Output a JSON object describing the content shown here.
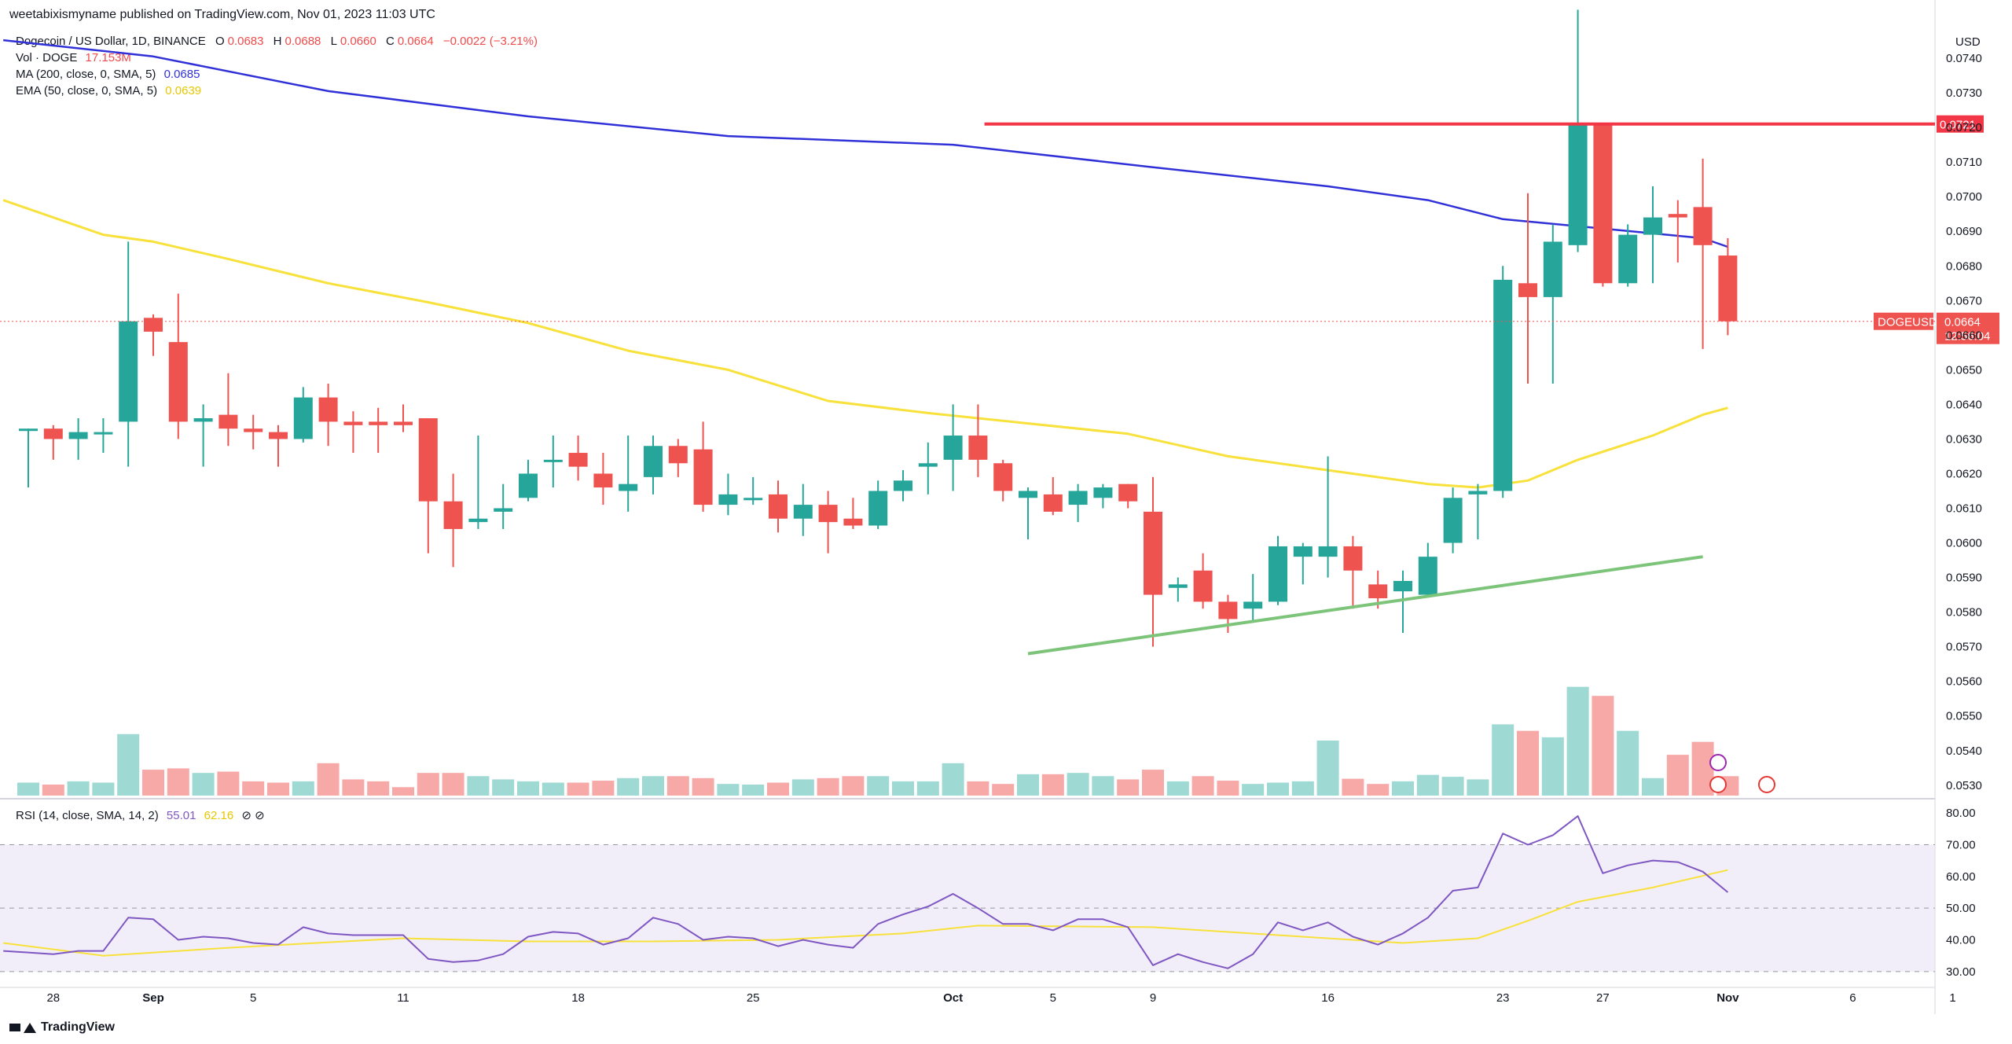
{
  "header": {
    "published": "weetabixismyname published on TradingView.com, Nov 01, 2023 11:03 UTC"
  },
  "legend": {
    "symbol": "Dogecoin / US Dollar, 1D, BINANCE",
    "ohlc": [
      {
        "k": "O",
        "v": "0.0683"
      },
      {
        "k": "H",
        "v": "0.0688"
      },
      {
        "k": "L",
        "v": "0.0660"
      },
      {
        "k": "C",
        "v": "0.0664"
      },
      {
        "k": "",
        "v": "−0.0022 (−3.21%)"
      }
    ],
    "vol": {
      "label": "Vol · DOGE",
      "value": "17.153M"
    },
    "ma": {
      "label": "MA (200, close, 0, SMA, 5)",
      "value": "0.0685"
    },
    "ema": {
      "label": "EMA (50, close, 0, SMA, 5)",
      "value": "0.0639"
    },
    "rsi": {
      "label": "RSI (14, close, SMA, 14, 2)",
      "value": "55.01",
      "value2": "62.16",
      "icons": "⊘ ⊘"
    }
  },
  "footer": {
    "brand": "TradingView"
  },
  "colors": {
    "up": "#26a69a",
    "down": "#ef5350",
    "ma": "#3030d8",
    "ema": "#f7e13a",
    "resistance": "#f23645",
    "support": "#7dc47b",
    "rsi": "#7e57c2",
    "rsi_ma": "#f7e13a"
  },
  "chart_data": [
    {
      "type": "candlestick",
      "title": "Dogecoin / US Dollar, 1D, BINANCE",
      "currency": "USD",
      "ylim": [
        0.0527,
        0.075
      ],
      "y_ticks": [
        "0.0530",
        "0.0540",
        "0.0550",
        "0.0560",
        "0.0570",
        "0.0580",
        "0.0590",
        "0.0600",
        "0.0610",
        "0.0620",
        "0.0630",
        "0.0640",
        "0.0650",
        "0.0660",
        "0.0670",
        "0.0680",
        "0.0690",
        "0.0700",
        "0.0710",
        "0.0720",
        "0.0730",
        "0.0740"
      ],
      "x_ticks": [
        {
          "day": 1,
          "label": "28"
        },
        {
          "day": 5,
          "label": "Sep"
        },
        {
          "day": 9,
          "label": "5"
        },
        {
          "day": 15,
          "label": "11"
        },
        {
          "day": 22,
          "label": "18"
        },
        {
          "day": 29,
          "label": "25"
        },
        {
          "day": 37,
          "label": "Oct"
        },
        {
          "day": 41,
          "label": "5"
        },
        {
          "day": 45,
          "label": "9"
        },
        {
          "day": 52,
          "label": "16"
        },
        {
          "day": 59,
          "label": "23"
        },
        {
          "day": 63,
          "label": "27"
        },
        {
          "day": 68,
          "label": "Nov"
        },
        {
          "day": 73,
          "label": "6"
        },
        {
          "day": 77,
          "label": "1"
        }
      ],
      "candles": [
        {
          "o": 0.0633,
          "h": 0.0633,
          "l": 0.0616,
          "c": 0.0633
        },
        {
          "o": 0.0633,
          "h": 0.0634,
          "l": 0.0624,
          "c": 0.063
        },
        {
          "o": 0.063,
          "h": 0.0636,
          "l": 0.0624,
          "c": 0.0632
        },
        {
          "o": 0.0632,
          "h": 0.0636,
          "l": 0.0626,
          "c": 0.0632
        },
        {
          "o": 0.0635,
          "h": 0.0687,
          "l": 0.0622,
          "c": 0.0664
        },
        {
          "o": 0.0665,
          "h": 0.0666,
          "l": 0.0654,
          "c": 0.0661
        },
        {
          "o": 0.0658,
          "h": 0.0672,
          "l": 0.063,
          "c": 0.0635
        },
        {
          "o": 0.0635,
          "h": 0.064,
          "l": 0.0622,
          "c": 0.0636
        },
        {
          "o": 0.0637,
          "h": 0.0649,
          "l": 0.0628,
          "c": 0.0633
        },
        {
          "o": 0.0633,
          "h": 0.0637,
          "l": 0.0627,
          "c": 0.0632
        },
        {
          "o": 0.0632,
          "h": 0.0634,
          "l": 0.0622,
          "c": 0.063
        },
        {
          "o": 0.063,
          "h": 0.0645,
          "l": 0.0629,
          "c": 0.0642
        },
        {
          "o": 0.0642,
          "h": 0.0646,
          "l": 0.0628,
          "c": 0.0635
        },
        {
          "o": 0.0635,
          "h": 0.0638,
          "l": 0.0626,
          "c": 0.0634
        },
        {
          "o": 0.0635,
          "h": 0.0639,
          "l": 0.0626,
          "c": 0.0634
        },
        {
          "o": 0.0635,
          "h": 0.064,
          "l": 0.0632,
          "c": 0.0634
        },
        {
          "o": 0.0636,
          "h": 0.0636,
          "l": 0.0597,
          "c": 0.0612
        },
        {
          "o": 0.0612,
          "h": 0.062,
          "l": 0.0593,
          "c": 0.0604
        },
        {
          "o": 0.0606,
          "h": 0.0631,
          "l": 0.0604,
          "c": 0.0607
        },
        {
          "o": 0.0609,
          "h": 0.0617,
          "l": 0.0604,
          "c": 0.061
        },
        {
          "o": 0.0613,
          "h": 0.0624,
          "l": 0.0612,
          "c": 0.062
        },
        {
          "o": 0.0624,
          "h": 0.0631,
          "l": 0.0616,
          "c": 0.0624
        },
        {
          "o": 0.0626,
          "h": 0.0631,
          "l": 0.0618,
          "c": 0.0622
        },
        {
          "o": 0.062,
          "h": 0.0626,
          "l": 0.0611,
          "c": 0.0616
        },
        {
          "o": 0.0615,
          "h": 0.0631,
          "l": 0.0609,
          "c": 0.0617
        },
        {
          "o": 0.0619,
          "h": 0.0631,
          "l": 0.0614,
          "c": 0.0628
        },
        {
          "o": 0.0628,
          "h": 0.063,
          "l": 0.0619,
          "c": 0.0623
        },
        {
          "o": 0.0627,
          "h": 0.0635,
          "l": 0.0609,
          "c": 0.0611
        },
        {
          "o": 0.0611,
          "h": 0.062,
          "l": 0.0608,
          "c": 0.0614
        },
        {
          "o": 0.0613,
          "h": 0.0619,
          "l": 0.0611,
          "c": 0.0613
        },
        {
          "o": 0.0614,
          "h": 0.0618,
          "l": 0.0603,
          "c": 0.0607
        },
        {
          "o": 0.0607,
          "h": 0.0617,
          "l": 0.0602,
          "c": 0.0611
        },
        {
          "o": 0.0611,
          "h": 0.0615,
          "l": 0.0597,
          "c": 0.0606
        },
        {
          "o": 0.0607,
          "h": 0.0613,
          "l": 0.0604,
          "c": 0.0605
        },
        {
          "o": 0.0605,
          "h": 0.0618,
          "l": 0.0604,
          "c": 0.0615
        },
        {
          "o": 0.0615,
          "h": 0.0621,
          "l": 0.0612,
          "c": 0.0618
        },
        {
          "o": 0.0622,
          "h": 0.0629,
          "l": 0.0614,
          "c": 0.0623
        },
        {
          "o": 0.0624,
          "h": 0.064,
          "l": 0.0615,
          "c": 0.0631
        },
        {
          "o": 0.0631,
          "h": 0.064,
          "l": 0.0619,
          "c": 0.0624
        },
        {
          "o": 0.0623,
          "h": 0.0624,
          "l": 0.0612,
          "c": 0.0615
        },
        {
          "o": 0.0613,
          "h": 0.0616,
          "l": 0.0601,
          "c": 0.0615
        },
        {
          "o": 0.0614,
          "h": 0.0619,
          "l": 0.0608,
          "c": 0.0609
        },
        {
          "o": 0.0611,
          "h": 0.0617,
          "l": 0.0606,
          "c": 0.0615
        },
        {
          "o": 0.0613,
          "h": 0.0617,
          "l": 0.061,
          "c": 0.0616
        },
        {
          "o": 0.0617,
          "h": 0.0617,
          "l": 0.061,
          "c": 0.0612
        },
        {
          "o": 0.0609,
          "h": 0.0619,
          "l": 0.057,
          "c": 0.0585
        },
        {
          "o": 0.0587,
          "h": 0.059,
          "l": 0.0583,
          "c": 0.0588
        },
        {
          "o": 0.0592,
          "h": 0.0597,
          "l": 0.0581,
          "c": 0.0583
        },
        {
          "o": 0.0583,
          "h": 0.0585,
          "l": 0.0574,
          "c": 0.0578
        },
        {
          "o": 0.0581,
          "h": 0.0591,
          "l": 0.0577,
          "c": 0.0583
        },
        {
          "o": 0.0583,
          "h": 0.0602,
          "l": 0.0582,
          "c": 0.0599
        },
        {
          "o": 0.0596,
          "h": 0.06,
          "l": 0.0588,
          "c": 0.0599
        },
        {
          "o": 0.0596,
          "h": 0.0625,
          "l": 0.059,
          "c": 0.0599
        },
        {
          "o": 0.0599,
          "h": 0.0602,
          "l": 0.0581,
          "c": 0.0592
        },
        {
          "o": 0.0588,
          "h": 0.0592,
          "l": 0.0581,
          "c": 0.0584
        },
        {
          "o": 0.0586,
          "h": 0.0592,
          "l": 0.0574,
          "c": 0.0589
        },
        {
          "o": 0.0585,
          "h": 0.06,
          "l": 0.0585,
          "c": 0.0596
        },
        {
          "o": 0.06,
          "h": 0.0616,
          "l": 0.0597,
          "c": 0.0613
        },
        {
          "o": 0.0614,
          "h": 0.0617,
          "l": 0.0601,
          "c": 0.0615
        },
        {
          "o": 0.0615,
          "h": 0.068,
          "l": 0.0613,
          "c": 0.0676
        },
        {
          "o": 0.0675,
          "h": 0.0701,
          "l": 0.0646,
          "c": 0.0671
        },
        {
          "o": 0.0671,
          "h": 0.0692,
          "l": 0.0646,
          "c": 0.0687
        },
        {
          "o": 0.0686,
          "h": 0.0754,
          "l": 0.0684,
          "c": 0.0721
        },
        {
          "o": 0.0721,
          "h": 0.0721,
          "l": 0.0674,
          "c": 0.0675
        },
        {
          "o": 0.0675,
          "h": 0.0692,
          "l": 0.0674,
          "c": 0.0689
        },
        {
          "o": 0.0689,
          "h": 0.0703,
          "l": 0.0675,
          "c": 0.0694
        },
        {
          "o": 0.0695,
          "h": 0.0699,
          "l": 0.0681,
          "c": 0.0694
        },
        {
          "o": 0.0697,
          "h": 0.0711,
          "l": 0.0656,
          "c": 0.0686
        },
        {
          "o": 0.0683,
          "h": 0.0688,
          "l": 0.066,
          "c": 0.0664
        }
      ],
      "volume": [
        0.2,
        0.17,
        0.22,
        0.2,
        0.95,
        0.4,
        0.42,
        0.35,
        0.37,
        0.22,
        0.2,
        0.22,
        0.5,
        0.25,
        0.22,
        0.13,
        0.35,
        0.35,
        0.3,
        0.25,
        0.22,
        0.2,
        0.2,
        0.23,
        0.27,
        0.3,
        0.3,
        0.27,
        0.18,
        0.17,
        0.2,
        0.25,
        0.27,
        0.3,
        0.3,
        0.22,
        0.22,
        0.5,
        0.22,
        0.18,
        0.33,
        0.33,
        0.35,
        0.3,
        0.25,
        0.4,
        0.22,
        0.3,
        0.23,
        0.18,
        0.2,
        0.22,
        0.85,
        0.26,
        0.18,
        0.22,
        0.32,
        0.29,
        0.25,
        1.1,
        1.0,
        0.9,
        1.68,
        1.54,
        1.0,
        0.27,
        0.63,
        0.83,
        0.3
      ],
      "ma200": [
        [
          -1,
          0.07452
        ],
        [
          5,
          0.07405
        ],
        [
          12,
          0.07305
        ],
        [
          20,
          0.07232
        ],
        [
          28,
          0.07175
        ],
        [
          37,
          0.0715
        ],
        [
          45,
          0.07085
        ],
        [
          52,
          0.0703
        ],
        [
          56,
          0.0699
        ],
        [
          59,
          0.06935
        ],
        [
          63,
          0.06908
        ],
        [
          67,
          0.0688
        ],
        [
          68,
          0.06855
        ]
      ],
      "ema50": [
        [
          -1,
          0.0699
        ],
        [
          3,
          0.0689
        ],
        [
          5,
          0.0687
        ],
        [
          8,
          0.0682
        ],
        [
          12,
          0.0675
        ],
        [
          16,
          0.06695
        ],
        [
          20,
          0.06635
        ],
        [
          24,
          0.06555
        ],
        [
          28,
          0.065
        ],
        [
          32,
          0.0641
        ],
        [
          36,
          0.06375
        ],
        [
          40,
          0.06345
        ],
        [
          44,
          0.06315
        ],
        [
          48,
          0.0625
        ],
        [
          52,
          0.0621
        ],
        [
          56,
          0.0617
        ],
        [
          58,
          0.0616
        ],
        [
          60,
          0.0618
        ],
        [
          62,
          0.0624
        ],
        [
          65,
          0.0631
        ],
        [
          67,
          0.0637
        ],
        [
          68,
          0.0639
        ]
      ],
      "resistance": {
        "from": 37,
        "to": 77,
        "value": 0.0721
      },
      "support": [
        [
          40,
          0.0568
        ],
        [
          67,
          0.0596
        ]
      ],
      "last_price": {
        "value": "0.0664",
        "symbol": "DOGEUSD",
        "countdown": "12:56:04"
      },
      "resistance_label": "0.0721"
    },
    {
      "type": "line",
      "title": "RSI (14, close, SMA, 14, 2)",
      "ylim": [
        26,
        83
      ],
      "y_ticks": [
        "30.00",
        "40.00",
        "50.00",
        "60.00",
        "70.00",
        "80.00"
      ],
      "bands": [
        30,
        50,
        70
      ],
      "rsi": [
        [
          -1,
          36.5
        ],
        [
          0,
          36.0
        ],
        [
          1,
          35.5
        ],
        [
          2,
          36.5
        ],
        [
          3,
          36.5
        ],
        [
          4,
          47.0
        ],
        [
          5,
          46.5
        ],
        [
          6,
          40.0
        ],
        [
          7,
          41.0
        ],
        [
          8,
          40.5
        ],
        [
          9,
          39.0
        ],
        [
          10,
          38.5
        ],
        [
          11,
          44.0
        ],
        [
          12,
          42.0
        ],
        [
          13,
          41.5
        ],
        [
          14,
          41.5
        ],
        [
          15,
          41.5
        ],
        [
          16,
          34.0
        ],
        [
          17,
          33.0
        ],
        [
          18,
          33.5
        ],
        [
          19,
          35.5
        ],
        [
          20,
          41.0
        ],
        [
          21,
          42.5
        ],
        [
          22,
          42.0
        ],
        [
          23,
          38.5
        ],
        [
          24,
          40.5
        ],
        [
          25,
          47.0
        ],
        [
          26,
          45.0
        ],
        [
          27,
          40.0
        ],
        [
          28,
          41.0
        ],
        [
          29,
          40.5
        ],
        [
          30,
          38.0
        ],
        [
          31,
          40.0
        ],
        [
          32,
          38.5
        ],
        [
          33,
          37.5
        ],
        [
          34,
          45.0
        ],
        [
          35,
          48.0
        ],
        [
          36,
          50.5
        ],
        [
          37,
          54.5
        ],
        [
          38,
          50.0
        ],
        [
          39,
          45.0
        ],
        [
          40,
          45.0
        ],
        [
          41,
          43.0
        ],
        [
          42,
          46.5
        ],
        [
          43,
          46.5
        ],
        [
          44,
          44.0
        ],
        [
          45,
          32.0
        ],
        [
          46,
          35.5
        ],
        [
          47,
          33.0
        ],
        [
          48,
          31.0
        ],
        [
          49,
          35.5
        ],
        [
          50,
          45.5
        ],
        [
          51,
          43.0
        ],
        [
          52,
          45.5
        ],
        [
          53,
          41.0
        ],
        [
          54,
          38.5
        ],
        [
          55,
          42.0
        ],
        [
          56,
          47.0
        ],
        [
          57,
          55.5
        ],
        [
          58,
          56.5
        ],
        [
          59,
          73.5
        ],
        [
          60,
          70.0
        ],
        [
          61,
          73.0
        ],
        [
          62,
          79.0
        ],
        [
          63,
          61.0
        ],
        [
          64,
          63.5
        ],
        [
          65,
          65.0
        ],
        [
          66,
          64.5
        ],
        [
          67,
          61.5
        ],
        [
          68,
          55.0
        ]
      ],
      "rsi_ma": [
        [
          -1,
          39.0
        ],
        [
          3,
          35.0
        ],
        [
          8,
          37.5
        ],
        [
          15,
          40.5
        ],
        [
          20,
          39.5
        ],
        [
          25,
          39.5
        ],
        [
          30,
          40.0
        ],
        [
          35,
          42.0
        ],
        [
          38,
          44.5
        ],
        [
          45,
          44.0
        ],
        [
          50,
          41.5
        ],
        [
          55,
          39.0
        ],
        [
          58,
          40.5
        ],
        [
          60,
          46.0
        ],
        [
          62,
          52.0
        ],
        [
          65,
          56.5
        ],
        [
          68,
          62.0
        ]
      ]
    }
  ]
}
